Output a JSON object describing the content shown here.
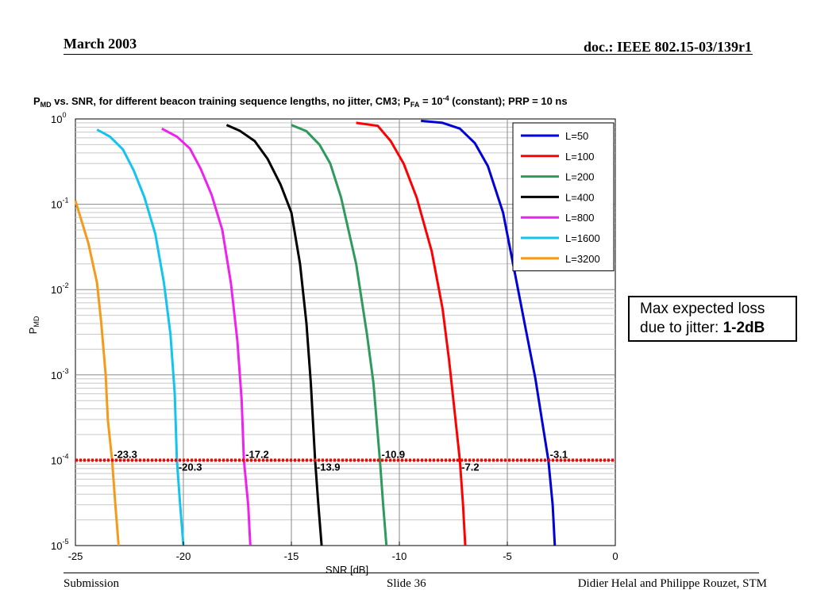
{
  "header": {
    "date": "March 2003",
    "doc_id": "doc.: IEEE 802.15-03/139r1"
  },
  "footer": {
    "left": "Submission",
    "slide": "Slide 36",
    "authors": "Didier Helal and Philippe Rouzet, STM"
  },
  "callout": {
    "line1": "Max expected loss",
    "line2_prefix": "due to jitter: ",
    "line2_bold": "1-2dB"
  },
  "chart_data": {
    "type": "line",
    "title": {
      "p": "P",
      "p_sub": "MD",
      "mid": " vs. SNR, for different beacon training sequence lengths, no jitter, CM3; P",
      "pfa_sub": "FA",
      "eq": " = 10",
      "exp": "-4",
      "tail": " (constant); PRP = 10 ns"
    },
    "xlabel": "SNR [dB]",
    "ylabel": {
      "p": "P",
      "sub": "MD"
    },
    "xlim": [
      -25,
      0
    ],
    "ylim_log10": [
      -5,
      0
    ],
    "y_scale": "log",
    "x_ticks": [
      "-25",
      "-20",
      "-15",
      "-10",
      "-5",
      "0"
    ],
    "y_ticks": [
      {
        "base": "10",
        "exp": "0"
      },
      {
        "base": "10",
        "exp": "-1"
      },
      {
        "base": "10",
        "exp": "-2"
      },
      {
        "base": "10",
        "exp": "-3"
      },
      {
        "base": "10",
        "exp": "-4"
      },
      {
        "base": "10",
        "exp": "-5"
      }
    ],
    "grid": true,
    "legend_position": "top-right",
    "threshold_line": {
      "y": 0.0001,
      "color": "#ff0000",
      "style": "dotted"
    },
    "series": [
      {
        "name": "L=50",
        "color": "#0000d8",
        "points": [
          [
            -9.0,
            0.95
          ],
          [
            -8.0,
            0.9
          ],
          [
            -7.2,
            0.77
          ],
          [
            -6.5,
            0.52
          ],
          [
            -5.9,
            0.28
          ],
          [
            -5.2,
            0.08
          ],
          [
            -4.7,
            0.018
          ],
          [
            -4.2,
            0.004
          ],
          [
            -3.7,
            0.0009
          ],
          [
            -3.4,
            0.0003
          ],
          [
            -3.1,
            0.0001
          ],
          [
            -2.9,
            3e-05
          ],
          [
            -2.8,
            1e-05
          ]
        ]
      },
      {
        "name": "L=100",
        "color": "#ff0000",
        "points": [
          [
            -12.0,
            0.9
          ],
          [
            -11.0,
            0.83
          ],
          [
            -10.4,
            0.55
          ],
          [
            -9.8,
            0.3
          ],
          [
            -9.2,
            0.12
          ],
          [
            -8.5,
            0.028
          ],
          [
            -8.0,
            0.006
          ],
          [
            -7.7,
            0.0015
          ],
          [
            -7.4,
            0.0003
          ],
          [
            -7.2,
            0.0001
          ],
          [
            -7.05,
            3e-05
          ],
          [
            -6.95,
            1e-05
          ]
        ]
      },
      {
        "name": "L=200",
        "color": "#2e9a5c",
        "points": [
          [
            -15.0,
            0.85
          ],
          [
            -14.3,
            0.72
          ],
          [
            -13.7,
            0.5
          ],
          [
            -13.2,
            0.3
          ],
          [
            -12.7,
            0.12
          ],
          [
            -12.0,
            0.02
          ],
          [
            -11.5,
            0.003
          ],
          [
            -11.2,
            0.0008
          ],
          [
            -10.9,
            0.0001
          ],
          [
            -10.75,
            3e-05
          ],
          [
            -10.6,
            1e-05
          ]
        ]
      },
      {
        "name": "L=400",
        "color": "#000000",
        "points": [
          [
            -18.0,
            0.85
          ],
          [
            -17.4,
            0.73
          ],
          [
            -16.7,
            0.55
          ],
          [
            -16.1,
            0.34
          ],
          [
            -15.5,
            0.17
          ],
          [
            -15.0,
            0.08
          ],
          [
            -14.6,
            0.02
          ],
          [
            -14.3,
            0.004
          ],
          [
            -14.1,
            0.0008
          ],
          [
            -13.9,
            0.0001
          ],
          [
            -13.75,
            3e-05
          ],
          [
            -13.6,
            1e-05
          ]
        ]
      },
      {
        "name": "L=800",
        "color": "#ee22ee",
        "points": [
          [
            -21.0,
            0.77
          ],
          [
            -20.3,
            0.62
          ],
          [
            -19.7,
            0.45
          ],
          [
            -19.2,
            0.26
          ],
          [
            -18.7,
            0.13
          ],
          [
            -18.2,
            0.05
          ],
          [
            -17.8,
            0.012
          ],
          [
            -17.5,
            0.0025
          ],
          [
            -17.3,
            0.0005
          ],
          [
            -17.2,
            0.0001
          ],
          [
            -17.0,
            3e-05
          ],
          [
            -16.9,
            1e-05
          ]
        ]
      },
      {
        "name": "L=1600",
        "color": "#13c4ef",
        "points": [
          [
            -24.0,
            0.75
          ],
          [
            -23.4,
            0.62
          ],
          [
            -22.8,
            0.44
          ],
          [
            -22.3,
            0.25
          ],
          [
            -21.8,
            0.12
          ],
          [
            -21.3,
            0.045
          ],
          [
            -20.9,
            0.012
          ],
          [
            -20.6,
            0.003
          ],
          [
            -20.4,
            0.0006
          ],
          [
            -20.3,
            0.0001
          ],
          [
            -20.15,
            3e-05
          ],
          [
            -20.0,
            1e-05
          ]
        ]
      },
      {
        "name": "L=3200",
        "color": "#f59a1a",
        "points": [
          [
            -25.0,
            0.11
          ],
          [
            -24.4,
            0.035
          ],
          [
            -24.0,
            0.012
          ],
          [
            -23.8,
            0.004
          ],
          [
            -23.6,
            0.001
          ],
          [
            -23.5,
            0.0003
          ],
          [
            -23.3,
            0.0001
          ],
          [
            -23.15,
            3e-05
          ],
          [
            -23.0,
            1e-05
          ]
        ]
      }
    ],
    "annotations": [
      {
        "text": "-23.3",
        "x": -23.3,
        "side": "above"
      },
      {
        "text": "-20.3",
        "x": -20.3,
        "side": "below"
      },
      {
        "text": "-17.2",
        "x": -17.2,
        "side": "above"
      },
      {
        "text": "-13.9",
        "x": -13.9,
        "side": "below"
      },
      {
        "text": "-10.9",
        "x": -10.9,
        "side": "above"
      },
      {
        "text": "-7.2",
        "x": -7.2,
        "side": "below"
      },
      {
        "text": "-3.1",
        "x": -3.1,
        "side": "above"
      }
    ]
  }
}
